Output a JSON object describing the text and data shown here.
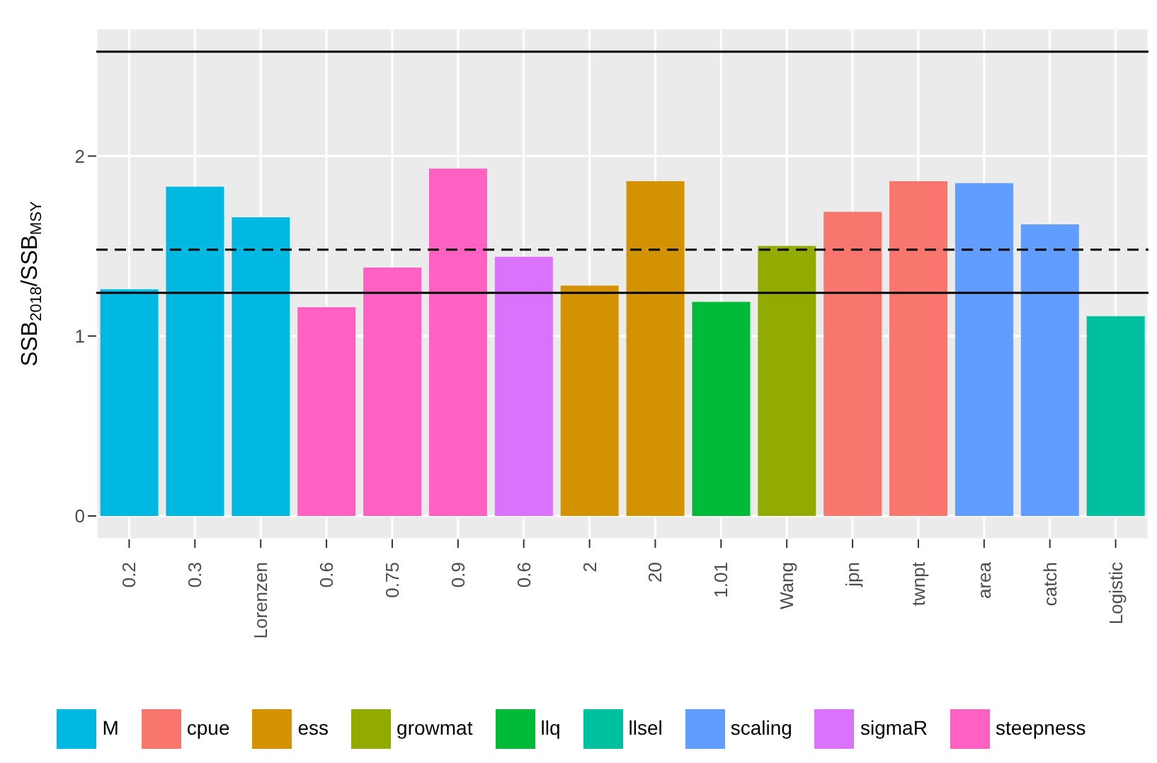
{
  "chart_data": {
    "type": "bar",
    "ylabel": "SSB$_{2018}$/SSB$_{MSY}$",
    "categories": [
      "0.2",
      "0.3",
      "Lorenzen",
      "0.6",
      "0.75",
      "0.9",
      "0.6",
      "2",
      "20",
      "1.01",
      "Wang",
      "jpn",
      "twnpt",
      "area",
      "catch",
      "Logistic"
    ],
    "stacked": true,
    "series": [
      {
        "name": "cpue",
        "color": "#f8766d",
        "values": [
          null,
          null,
          null,
          null,
          null,
          null,
          null,
          null,
          null,
          null,
          null,
          1.69,
          1.86,
          null,
          null,
          null
        ]
      },
      {
        "name": "ess",
        "color": "#d39200",
        "values": [
          null,
          null,
          null,
          null,
          null,
          null,
          null,
          1.28,
          1.86,
          null,
          null,
          null,
          null,
          null,
          null,
          null
        ]
      },
      {
        "name": "growmat",
        "color": "#93aa00",
        "values": [
          null,
          null,
          null,
          null,
          null,
          null,
          null,
          null,
          null,
          null,
          1.5,
          null,
          null,
          null,
          null,
          null
        ]
      },
      {
        "name": "llq",
        "color": "#00ba38",
        "values": [
          null,
          null,
          null,
          null,
          null,
          null,
          null,
          null,
          null,
          1.19,
          null,
          null,
          null,
          null,
          null,
          null
        ]
      },
      {
        "name": "llsel",
        "color": "#00c19f",
        "values": [
          null,
          null,
          null,
          null,
          null,
          null,
          null,
          null,
          null,
          null,
          null,
          null,
          null,
          null,
          null,
          1.11
        ]
      },
      {
        "name": "M",
        "color": "#00b9e3",
        "values": [
          1.26,
          1.83,
          1.66,
          null,
          null,
          null,
          null,
          null,
          null,
          null,
          null,
          null,
          null,
          null,
          null,
          null
        ]
      },
      {
        "name": "scaling",
        "color": "#619cff",
        "values": [
          null,
          null,
          null,
          null,
          null,
          null,
          null,
          null,
          null,
          null,
          null,
          null,
          null,
          1.85,
          1.62,
          null
        ]
      },
      {
        "name": "sigmaR",
        "color": "#db72fb",
        "values": [
          null,
          null,
          null,
          null,
          null,
          null,
          1.44,
          null,
          null,
          null,
          null,
          null,
          null,
          null,
          null,
          null
        ]
      },
      {
        "name": "steepness",
        "color": "#ff61c3",
        "values": [
          null,
          null,
          null,
          1.16,
          1.38,
          1.93,
          null,
          null,
          null,
          null,
          null,
          null,
          null,
          null,
          null,
          null
        ]
      }
    ],
    "ylim": [
      -0.13,
      2.71
    ],
    "yticks": [
      0,
      1,
      2
    ],
    "grid": true,
    "legend": "bottom",
    "ref_lines": [
      {
        "axis": "y",
        "value": 2.58,
        "color": "#000000",
        "line_style": "solid"
      },
      {
        "axis": "y",
        "value": 1.48,
        "color": "#000000",
        "line_style": "dashed"
      },
      {
        "axis": "y",
        "value": 1.24,
        "color": "#000000",
        "line_style": "solid"
      }
    ]
  }
}
